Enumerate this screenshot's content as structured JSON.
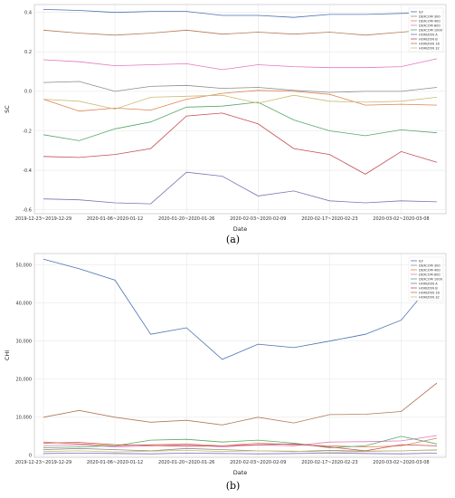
{
  "chart_data": [
    {
      "type": "line",
      "panel_label": "(a)",
      "xlabel": "Date",
      "ylabel": "SC",
      "ylim": [
        -0.62,
        0.44
      ],
      "yticks": [
        "0.4",
        "0.2",
        "0.0",
        "-0.2",
        "-0.4",
        "-0.6"
      ],
      "ytick_values": [
        0.4,
        0.2,
        0.0,
        -0.2,
        -0.4,
        -0.6
      ],
      "x_tick_labels": [
        "2019-12-23~2019-12-29",
        "2020-01-06~2020-01-12",
        "2020-01-20~2020-01-26",
        "2020-02-03~2020-02-09",
        "2020-02-17~2020-02-23",
        "2020-03-02~2020-03-08"
      ],
      "x_tick_index": [
        0,
        2,
        4,
        6,
        8,
        10
      ],
      "grid": true,
      "legend_position": "top-right",
      "colors": [
        "#4c72b0",
        "#8c8c8c",
        "#dd8452",
        "#e377c2",
        "#55a868",
        "#8172b2",
        "#c44e52",
        "#b07a58",
        "#ccb974"
      ],
      "series": [
        {
          "name": "ILF",
          "values": [
            0.415,
            0.41,
            0.4,
            0.405,
            0.405,
            0.385,
            0.385,
            0.375,
            0.39,
            0.39,
            0.395,
            0.4
          ]
        },
        {
          "name": "DEXCOM 300",
          "values": [
            0.045,
            0.05,
            0.0,
            0.025,
            0.03,
            0.015,
            0.02,
            0.005,
            -0.005,
            0.0,
            0.0,
            0.02
          ]
        },
        {
          "name": "DEXCOM 400",
          "values": [
            -0.04,
            -0.1,
            -0.085,
            -0.095,
            -0.04,
            -0.01,
            0.005,
            0.0,
            -0.015,
            -0.07,
            -0.065,
            -0.07
          ]
        },
        {
          "name": "DEXCOM 800",
          "values": [
            0.16,
            0.15,
            0.13,
            0.135,
            0.14,
            0.11,
            0.135,
            0.125,
            0.12,
            0.12,
            0.125,
            0.165
          ]
        },
        {
          "name": "DEXCOM 1000",
          "values": [
            -0.22,
            -0.25,
            -0.19,
            -0.155,
            -0.08,
            -0.075,
            -0.055,
            -0.145,
            -0.2,
            -0.225,
            -0.195,
            -0.21
          ]
        },
        {
          "name": "HORIZON A",
          "values": [
            -0.545,
            -0.55,
            -0.565,
            -0.57,
            -0.41,
            -0.43,
            -0.53,
            -0.505,
            -0.555,
            -0.565,
            -0.555,
            -0.56
          ]
        },
        {
          "name": "HORIZON B",
          "values": [
            -0.33,
            -0.335,
            -0.32,
            -0.29,
            -0.125,
            -0.11,
            -0.165,
            -0.29,
            -0.32,
            -0.42,
            -0.305,
            -0.36
          ]
        },
        {
          "name": "HORIZON 16",
          "values": [
            0.31,
            0.295,
            0.285,
            0.295,
            0.31,
            0.29,
            0.3,
            0.29,
            0.3,
            0.285,
            0.3,
            0.315
          ]
        },
        {
          "name": "HORIZON 32",
          "values": [
            -0.04,
            -0.05,
            -0.09,
            -0.03,
            -0.025,
            -0.02,
            -0.06,
            -0.02,
            -0.05,
            -0.055,
            -0.05,
            -0.03
          ]
        }
      ]
    },
    {
      "type": "line",
      "panel_label": "(b)",
      "xlabel": "Date",
      "ylabel": "CHI",
      "ylim": [
        -500,
        53000
      ],
      "yticks": [
        "50,000",
        "40,000",
        "30,000",
        "20,000",
        "10,000",
        "0"
      ],
      "ytick_values": [
        50000,
        40000,
        30000,
        20000,
        10000,
        0
      ],
      "x_tick_labels": [
        "2019-12-23~2019-12-29",
        "2020-01-06~2020-01-12",
        "2020-01-20~2020-01-26",
        "2020-02-03~2020-02-09",
        "2020-02-17~2020-02-23",
        "2020-03-02~2020-03-08"
      ],
      "x_tick_index": [
        0,
        2,
        4,
        6,
        8,
        10
      ],
      "grid": true,
      "legend_position": "top-right",
      "colors": [
        "#4c72b0",
        "#8c8c8c",
        "#dd8452",
        "#e377c2",
        "#55a868",
        "#8172b2",
        "#c44e52",
        "#b07a58",
        "#ccb974"
      ],
      "series": [
        {
          "name": "ILF",
          "values": [
            51500,
            49000,
            46000,
            31800,
            33500,
            25200,
            29200,
            28300,
            30000,
            31800,
            35500,
            46800
          ]
        },
        {
          "name": "DEXCOM 300",
          "values": [
            1500,
            1800,
            1500,
            1200,
            1800,
            1500,
            1200,
            1000,
            1300,
            1100,
            1200,
            1400
          ]
        },
        {
          "name": "DEXCOM 400",
          "values": [
            3500,
            3000,
            2500,
            2800,
            3000,
            2500,
            3200,
            2800,
            2500,
            2200,
            2500,
            4500
          ]
        },
        {
          "name": "DEXCOM 800",
          "values": [
            2500,
            2800,
            2200,
            2500,
            2800,
            2200,
            2700,
            2500,
            3500,
            3600,
            3800,
            5200
          ]
        },
        {
          "name": "DEXCOM 1000",
          "values": [
            2000,
            2200,
            2500,
            4000,
            4200,
            3500,
            4000,
            3200,
            2000,
            2500,
            5000,
            3000
          ]
        },
        {
          "name": "HORIZON A",
          "values": [
            500,
            600,
            500,
            400,
            600,
            500,
            400,
            500,
            600,
            500,
            400,
            600
          ]
        },
        {
          "name": "HORIZON B",
          "values": [
            3200,
            3400,
            2800,
            2600,
            2400,
            2500,
            2800,
            3000,
            2200,
            1200,
            2800,
            2500
          ]
        },
        {
          "name": "HORIZON 16",
          "values": [
            10000,
            11800,
            10000,
            8700,
            9200,
            8000,
            10000,
            8500,
            10700,
            10800,
            11500,
            19000
          ]
        },
        {
          "name": "HORIZON 32",
          "values": [
            1000,
            1200,
            900,
            1100,
            1300,
            1000,
            1200,
            1100,
            900,
            1000,
            1200,
            1500
          ]
        }
      ]
    }
  ]
}
